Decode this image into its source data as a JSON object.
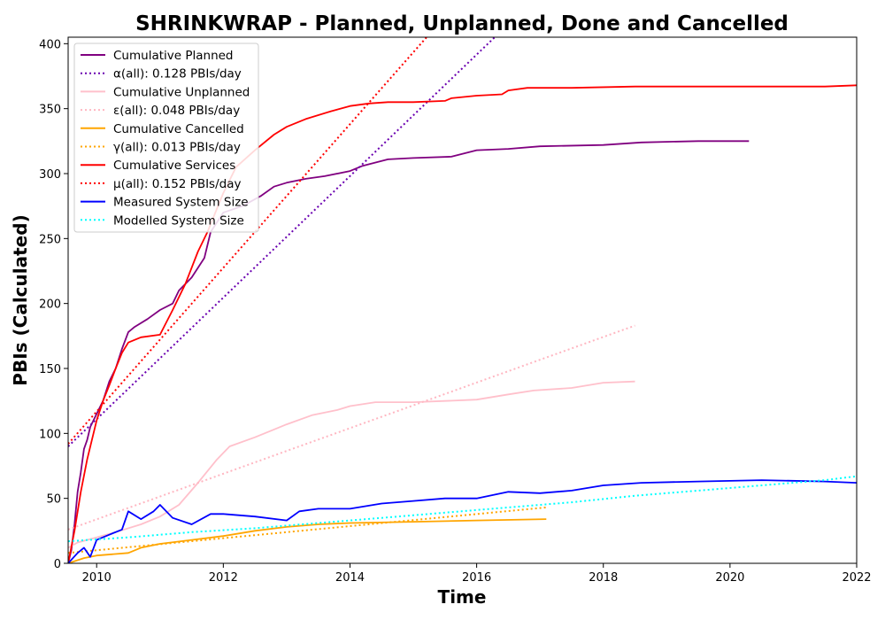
{
  "chart_data": {
    "type": "line",
    "title": "SHRINKWRAP - Planned, Unplanned, Done  and Cancelled",
    "xlabel": "Time",
    "ylabel": "PBIs (Calculated)",
    "xlim": [
      2009.55,
      2022.0
    ],
    "ylim": [
      0,
      405
    ],
    "xticks": [
      2010,
      2012,
      2014,
      2016,
      2018,
      2020,
      2022
    ],
    "yticks": [
      0,
      50,
      100,
      150,
      200,
      250,
      300,
      350,
      400
    ],
    "grid": false,
    "legend": "top-left",
    "series": [
      {
        "name": "Cumulative Planned",
        "color": "#800080",
        "style": "solid",
        "x": [
          2009.55,
          2009.6,
          2009.65,
          2009.7,
          2009.75,
          2009.8,
          2009.85,
          2009.9,
          2010.0,
          2010.1,
          2010.2,
          2010.3,
          2010.4,
          2010.5,
          2010.6,
          2010.8,
          2011.0,
          2011.2,
          2011.3,
          2011.5,
          2011.7,
          2011.8,
          2012.0,
          2012.3,
          2012.6,
          2012.8,
          2013.0,
          2013.3,
          2013.6,
          2014.0,
          2014.2,
          2014.6,
          2015.0,
          2015.6,
          2016.0,
          2016.5,
          2017.0,
          2018.0,
          2018.6,
          2019.5,
          2020.3
        ],
        "y": [
          0,
          10,
          30,
          55,
          70,
          88,
          95,
          105,
          115,
          125,
          140,
          150,
          165,
          178,
          182,
          188,
          195,
          200,
          210,
          220,
          235,
          255,
          270,
          275,
          283,
          290,
          293,
          296,
          298,
          302,
          306,
          311,
          312,
          313,
          318,
          319,
          321,
          322,
          324,
          325,
          325
        ]
      },
      {
        "name": "α(all): 0.128 PBIs/day",
        "color": "#6a00b0",
        "style": "dotted",
        "x": [
          2009.55,
          2016.5
        ],
        "y": [
          90,
          415
        ]
      },
      {
        "name": "Cumulative Unplanned",
        "color": "#ffc0cb",
        "style": "solid",
        "x": [
          2009.55,
          2009.7,
          2010.0,
          2010.3,
          2010.7,
          2011.0,
          2011.3,
          2011.6,
          2011.9,
          2012.1,
          2012.5,
          2012.8,
          2013.0,
          2013.4,
          2013.8,
          2014.0,
          2014.4,
          2015.0,
          2015.5,
          2016.0,
          2016.5,
          2016.9,
          2017.5,
          2018.0,
          2018.5
        ],
        "y": [
          12,
          16,
          20,
          24,
          30,
          36,
          45,
          62,
          80,
          90,
          97,
          103,
          107,
          114,
          118,
          121,
          124,
          124,
          125,
          126,
          130,
          133,
          135,
          139,
          140
        ]
      },
      {
        "name": "ε(all): 0.048 PBIs/day",
        "color": "#ffb6c1",
        "style": "dotted",
        "x": [
          2009.55,
          2018.5
        ],
        "y": [
          26,
          183
        ]
      },
      {
        "name": "Cumulative Cancelled",
        "color": "#ffa500",
        "style": "solid",
        "x": [
          2009.55,
          2009.8,
          2010.0,
          2010.5,
          2010.7,
          2011.0,
          2011.5,
          2012.0,
          2012.5,
          2013.0,
          2013.5,
          2014.0,
          2015.0,
          2016.0,
          2017.1
        ],
        "y": [
          0,
          4,
          6,
          8,
          12,
          15,
          18,
          21,
          25,
          28,
          30,
          31,
          32,
          33,
          34
        ]
      },
      {
        "name": "γ(all): 0.013 PBIs/day",
        "color": "#ffa500",
        "style": "dotted",
        "x": [
          2009.55,
          2017.1
        ],
        "y": [
          8,
          43
        ]
      },
      {
        "name": "Cumulative Services",
        "color": "#ff0000",
        "style": "solid",
        "x": [
          2009.55,
          2009.65,
          2009.75,
          2009.85,
          2010.0,
          2010.1,
          2010.2,
          2010.3,
          2010.4,
          2010.5,
          2010.7,
          2011.0,
          2011.2,
          2011.4,
          2011.6,
          2011.75,
          2012.0,
          2012.2,
          2012.5,
          2012.8,
          2013.0,
          2013.3,
          2013.7,
          2014.0,
          2014.3,
          2014.6,
          2015.0,
          2015.5,
          2015.6,
          2016.0,
          2016.4,
          2016.5,
          2016.8,
          2017.5,
          2018.5,
          2019.5,
          2020.5,
          2021.5,
          2022.0
        ],
        "y": [
          0,
          25,
          55,
          80,
          110,
          125,
          137,
          150,
          162,
          170,
          174,
          176,
          195,
          215,
          240,
          255,
          285,
          305,
          318,
          330,
          336,
          342,
          348,
          352,
          354,
          355,
          355,
          356,
          358,
          360,
          361,
          364,
          366,
          366,
          367,
          367,
          367,
          367,
          368
        ]
      },
      {
        "name": "μ(all): 0.152 PBIs/day",
        "color": "#ff0000",
        "style": "dotted",
        "x": [
          2009.55,
          2015.3
        ],
        "y": [
          92,
          410
        ]
      },
      {
        "name": "Measured System Size",
        "color": "#0000ff",
        "style": "solid",
        "x": [
          2009.55,
          2009.7,
          2009.8,
          2009.9,
          2010.0,
          2010.2,
          2010.4,
          2010.5,
          2010.7,
          2010.9,
          2011.0,
          2011.2,
          2011.5,
          2011.8,
          2012.0,
          2012.5,
          2013.0,
          2013.2,
          2013.5,
          2014.0,
          2014.5,
          2015.0,
          2015.5,
          2016.0,
          2016.5,
          2017.0,
          2017.5,
          2018.0,
          2018.6,
          2019.5,
          2020.5,
          2021.5,
          2022.0
        ],
        "y": [
          0,
          8,
          12,
          5,
          18,
          22,
          26,
          40,
          34,
          40,
          45,
          35,
          30,
          38,
          38,
          36,
          33,
          40,
          42,
          42,
          46,
          48,
          50,
          50,
          55,
          54,
          56,
          60,
          62,
          63,
          64,
          63,
          62
        ]
      },
      {
        "name": "Modelled System Size",
        "color": "#00ffff",
        "style": "dotted",
        "x": [
          2009.55,
          2010.5,
          2011.5,
          2012.5,
          2013.5,
          2014.5,
          2015.5,
          2016.5,
          2017.5,
          2018.5,
          2019.5,
          2020.5,
          2021.5,
          2022.0
        ],
        "y": [
          17,
          20,
          24,
          27,
          31,
          35,
          39,
          43,
          47,
          52,
          56,
          60,
          64,
          67
        ]
      }
    ]
  }
}
